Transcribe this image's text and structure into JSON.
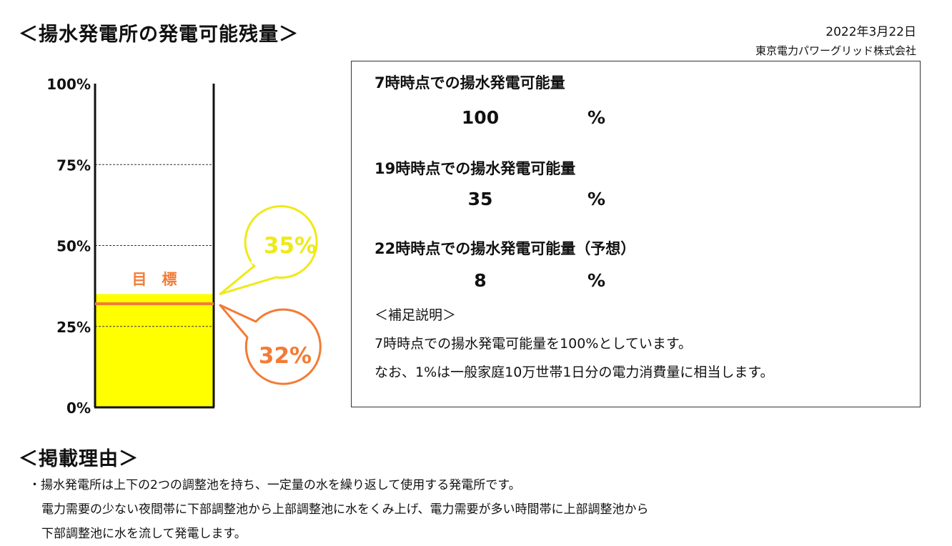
{
  "header": {
    "title": "＜揚水発電所の発電可能残量＞",
    "date": "2022年3月22日",
    "publisher": "東京電力パワーグリッド株式会社"
  },
  "colors": {
    "fill": "#ffff00",
    "target_line": "#f37b35",
    "current_bubble": "#eeea17",
    "target_bubble": "#f37b35"
  },
  "chart_data": {
    "type": "bar",
    "yticks": [
      "0%",
      "25%",
      "50%",
      "75%",
      "100%"
    ],
    "ylim": [
      0,
      100
    ],
    "value": 35,
    "target": 32,
    "target_label": "目　標",
    "current_callout": "35%",
    "target_callout": "32%"
  },
  "info": {
    "items": [
      {
        "label": "7時時点での揚水発電可能量",
        "value": "100",
        "unit": "%"
      },
      {
        "label": "19時時点での揚水発電可能量",
        "value": "35",
        "unit": "%"
      },
      {
        "label": "22時時点での揚水発電可能量（予想）",
        "value": "8",
        "unit": "%"
      }
    ],
    "note_heading": "＜補足説明＞",
    "notes": [
      "7時時点での揚水発電可能量を100%としています。",
      "なお、1%は一般家庭10万世帯1日分の電力消費量に相当します。"
    ]
  },
  "reason": {
    "heading": "＜掲載理由＞",
    "lines": [
      "・揚水発電所は上下の2つの調整池を持ち、一定量の水を繰り返して使用する発電所です。",
      "電力需要の少ない夜間帯に下部調整池から上部調整池に水をくみ上げ、電力需要が多い時間帯に上部調整池から",
      "下部調整池に水を流して発電します。"
    ]
  }
}
